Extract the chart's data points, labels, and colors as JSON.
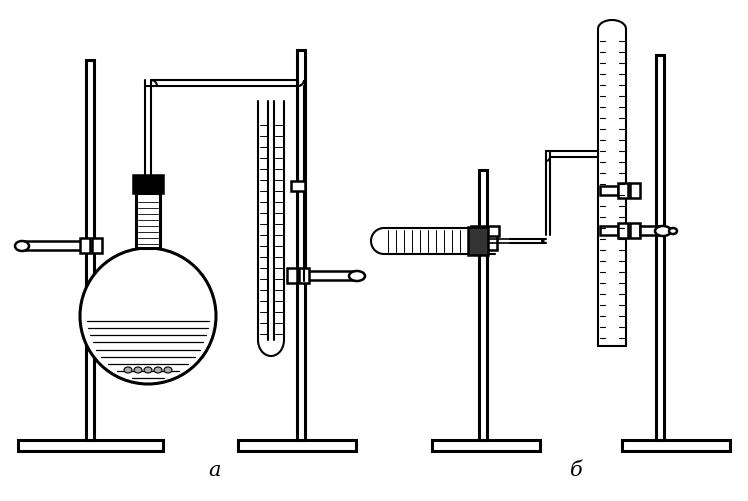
{
  "bg_color": "#ffffff",
  "line_color": "#000000",
  "label_a": "a",
  "label_b": "б",
  "fig_width": 7.48,
  "fig_height": 5.02,
  "dpi": 100
}
